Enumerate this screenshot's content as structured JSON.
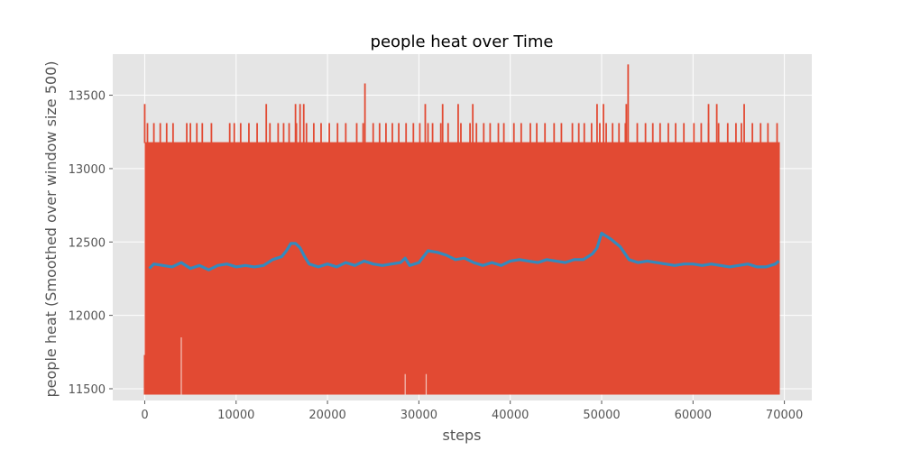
{
  "chart_data": {
    "type": "line",
    "title": "people heat over Time",
    "xlabel": "steps",
    "ylabel": "people heat (Smoothed over window size 500)",
    "xlim": [
      -3500,
      73000
    ],
    "ylim": [
      11420,
      13780
    ],
    "xticks": [
      0,
      10000,
      20000,
      30000,
      40000,
      50000,
      60000,
      70000
    ],
    "xtick_labels": [
      "0",
      "10000",
      "20000",
      "30000",
      "40000",
      "50000",
      "60000",
      "70000"
    ],
    "yticks": [
      11500,
      12000,
      12500,
      13000,
      13500
    ],
    "ytick_labels": [
      "11500",
      "12000",
      "12500",
      "13000",
      "13500"
    ],
    "grid": true,
    "background": "#e5e5e5",
    "series": [
      {
        "name": "",
        "color": "#e24a33",
        "style": "dense-band",
        "x_range": [
          0,
          69500
        ],
        "band_low": 11460,
        "band_high": 13180,
        "spikes_13310": [
          300,
          1000,
          1700,
          2400,
          3100,
          4600,
          5000,
          5700,
          6300,
          7300,
          9300,
          9800,
          10500,
          11400,
          12300,
          13700,
          14600,
          15200,
          15800,
          16600,
          17700,
          18500,
          19300,
          20200,
          21100,
          22000,
          23200,
          23900,
          25000,
          25700,
          26400,
          27100,
          27800,
          28600,
          29400,
          30100,
          31000,
          31500,
          32400,
          33200,
          34600,
          35600,
          36300,
          37100,
          37800,
          38700,
          39300,
          40400,
          41200,
          42200,
          42900,
          43800,
          44800,
          45600,
          46800,
          47500,
          48100,
          48900,
          49800,
          50500,
          51200,
          51900,
          52600,
          53900,
          54800,
          55600,
          56400,
          57300,
          58100,
          59000,
          60100,
          60900,
          61700,
          62800,
          63800,
          64700,
          65300,
          66500,
          67400,
          68200,
          69200
        ],
        "spikes_13440": [
          0,
          13300,
          16500,
          17000,
          17400,
          30700,
          32600,
          34300,
          35900,
          49500,
          50200,
          52700,
          61700,
          62600,
          65600
        ],
        "spikes_high": [
          {
            "x": 24100,
            "y": 13580
          },
          {
            "x": 52900,
            "y": 13710
          }
        ],
        "dips": [
          {
            "x": 4000,
            "y": 11850
          },
          {
            "x": 28500,
            "y": 11600
          },
          {
            "x": 30800,
            "y": 11600
          }
        ]
      },
      {
        "name": "",
        "color": "#348abd",
        "style": "line",
        "x": [
          500,
          1000,
          2000,
          3000,
          4000,
          5000,
          6000,
          7000,
          8000,
          9000,
          10000,
          11000,
          12000,
          13000,
          14000,
          15000,
          15500,
          16000,
          16500,
          17000,
          17500,
          18000,
          19000,
          20000,
          21000,
          22000,
          23000,
          24000,
          25000,
          26000,
          27000,
          28000,
          28500,
          29000,
          30000,
          31000,
          32000,
          33000,
          34000,
          35000,
          36000,
          37000,
          38000,
          39000,
          40000,
          41000,
          42000,
          43000,
          44000,
          45000,
          46000,
          47000,
          48000,
          49000,
          49500,
          50000,
          50500,
          51000,
          52000,
          53000,
          54000,
          55000,
          56000,
          57000,
          58000,
          59000,
          60000,
          61000,
          62000,
          63000,
          64000,
          65000,
          66000,
          67000,
          68000,
          69000,
          69400
        ],
        "y": [
          12320,
          12350,
          12340,
          12330,
          12360,
          12320,
          12340,
          12310,
          12340,
          12350,
          12330,
          12340,
          12330,
          12340,
          12380,
          12400,
          12440,
          12490,
          12490,
          12460,
          12400,
          12350,
          12330,
          12350,
          12330,
          12360,
          12340,
          12370,
          12350,
          12340,
          12350,
          12360,
          12390,
          12340,
          12360,
          12440,
          12430,
          12410,
          12380,
          12390,
          12360,
          12340,
          12360,
          12340,
          12370,
          12380,
          12370,
          12360,
          12380,
          12370,
          12360,
          12380,
          12380,
          12420,
          12460,
          12560,
          12540,
          12520,
          12470,
          12380,
          12360,
          12370,
          12360,
          12350,
          12340,
          12350,
          12350,
          12340,
          12350,
          12340,
          12330,
          12340,
          12350,
          12330,
          12330,
          12350,
          12370
        ]
      }
    ]
  }
}
